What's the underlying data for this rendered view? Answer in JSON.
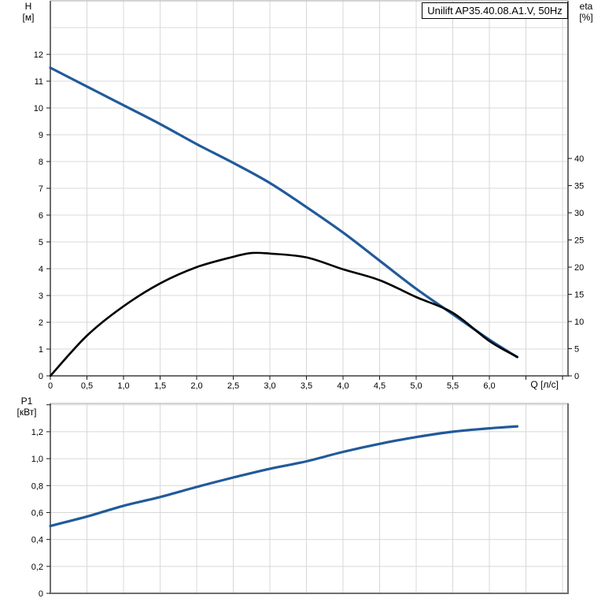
{
  "title_box": {
    "label": "Unilift AP35.40.08.A1.V, 50Hz"
  },
  "colors": {
    "curve_blue": "#215a9a",
    "curve_black": "#000000",
    "grid": "#d8d8d8",
    "frame": "#6e6e6e",
    "frame_light": "#aaaaaa",
    "tick": "#1a1a1a",
    "text": "#000000",
    "box_border": "#000000"
  },
  "chart_data": [
    {
      "type": "line",
      "title": "Unilift AP35.40.08.A1.V, 50Hz",
      "xlabel": "Q [л/с]",
      "ylabel_left_line1": "H",
      "ylabel_left_line2": "[м]",
      "ylabel_right_line1": "eta",
      "ylabel_right_line2": "[%]",
      "xlim": [
        0,
        7.075
      ],
      "ylim_left": [
        0,
        14
      ],
      "ylim_right": [
        0,
        69
      ],
      "grid_on": true,
      "grid_x": [
        0.5,
        1,
        1.5,
        2,
        2.5,
        3,
        3.5,
        4,
        4.5,
        5,
        5.5,
        6,
        6.5,
        7
      ],
      "grid_y": [
        1,
        2,
        3,
        4,
        5,
        6,
        7,
        8,
        9,
        10,
        11,
        12,
        13
      ],
      "x_ticks": [
        {
          "v": 0,
          "l": "0"
        },
        {
          "v": 0.5,
          "l": "0,5"
        },
        {
          "v": 1,
          "l": "1,0"
        },
        {
          "v": 1.5,
          "l": "1,5"
        },
        {
          "v": 2,
          "l": "2,0"
        },
        {
          "v": 2.5,
          "l": "2,5"
        },
        {
          "v": 3,
          "l": "3,0"
        },
        {
          "v": 3.5,
          "l": "3,5"
        },
        {
          "v": 4,
          "l": "4,0"
        },
        {
          "v": 4.5,
          "l": "4,5"
        },
        {
          "v": 5,
          "l": "5,0"
        },
        {
          "v": 5.5,
          "l": "5,5"
        },
        {
          "v": 6,
          "l": "6,0"
        },
        {
          "v": 6.5,
          "l": ""
        },
        {
          "v": 7,
          "l": ""
        }
      ],
      "y_ticks_left": [
        {
          "v": 0,
          "l": "0"
        },
        {
          "v": 1,
          "l": "1"
        },
        {
          "v": 2,
          "l": "2"
        },
        {
          "v": 3,
          "l": "3"
        },
        {
          "v": 4,
          "l": "4"
        },
        {
          "v": 5,
          "l": "5"
        },
        {
          "v": 6,
          "l": "6"
        },
        {
          "v": 7,
          "l": "7"
        },
        {
          "v": 8,
          "l": "8"
        },
        {
          "v": 9,
          "l": "9"
        },
        {
          "v": 10,
          "l": "10"
        },
        {
          "v": 11,
          "l": "11"
        },
        {
          "v": 12,
          "l": "12"
        }
      ],
      "y_ticks_right": [
        {
          "v": 0,
          "l": "0"
        },
        {
          "v": 5,
          "l": "5"
        },
        {
          "v": 10,
          "l": "10"
        },
        {
          "v": 15,
          "l": "15"
        },
        {
          "v": 20,
          "l": "20"
        },
        {
          "v": 25,
          "l": "25"
        },
        {
          "v": 30,
          "l": "30"
        },
        {
          "v": 35,
          "l": "35"
        },
        {
          "v": 40,
          "l": "40"
        }
      ],
      "series": [
        {
          "name": "h-curve",
          "axis": "left",
          "color": "#215a9a",
          "width": 3.2,
          "x": [
            0,
            0.5,
            1,
            1.5,
            2,
            2.5,
            3,
            3.5,
            4,
            4.5,
            5,
            5.5,
            6,
            6.38
          ],
          "y": [
            11.5,
            10.8,
            10.1,
            9.4,
            8.65,
            7.95,
            7.2,
            6.3,
            5.35,
            4.3,
            3.25,
            2.3,
            1.35,
            0.7
          ]
        },
        {
          "name": "eta-curve",
          "axis": "right",
          "color": "#000000",
          "width": 2.6,
          "x": [
            0,
            0.5,
            1,
            1.5,
            2,
            2.5,
            2.75,
            3,
            3.5,
            4,
            4.5,
            5,
            5.5,
            6,
            6.38
          ],
          "y": [
            0,
            7.4,
            12.8,
            17.0,
            20.0,
            21.9,
            22.6,
            22.5,
            21.8,
            19.6,
            17.6,
            14.5,
            11.6,
            6.4,
            3.5
          ]
        }
      ]
    },
    {
      "type": "line",
      "xlabel": "",
      "ylabel_left_line1": "P1",
      "ylabel_left_line2": "[кВт]",
      "xlim": [
        0,
        7.075
      ],
      "ylim_left": [
        0,
        1.41
      ],
      "grid_on": true,
      "grid_x": [
        0.5,
        1,
        1.5,
        2,
        2.5,
        3,
        3.5,
        4,
        4.5,
        5,
        5.5,
        6,
        6.5,
        7
      ],
      "grid_y": [
        0.2,
        0.4,
        0.6,
        0.8,
        1.0,
        1.2,
        1.4
      ],
      "x_ticks": [],
      "y_ticks_left": [
        {
          "v": 0,
          "l": "0"
        },
        {
          "v": 0.2,
          "l": "0,2"
        },
        {
          "v": 0.4,
          "l": "0,4"
        },
        {
          "v": 0.6,
          "l": "0,6"
        },
        {
          "v": 0.8,
          "l": "0,8"
        },
        {
          "v": 1.0,
          "l": "1,0"
        },
        {
          "v": 1.2,
          "l": "1,2"
        },
        {
          "v": 1.4,
          "l": ""
        }
      ],
      "y_ticks_right": [],
      "series": [
        {
          "name": "p1-curve",
          "axis": "left",
          "color": "#215a9a",
          "width": 3.2,
          "x": [
            0,
            0.5,
            1,
            1.5,
            2,
            2.5,
            3,
            3.5,
            4,
            4.5,
            5,
            5.5,
            6,
            6.38
          ],
          "y": [
            0.5,
            0.57,
            0.65,
            0.715,
            0.79,
            0.86,
            0.925,
            0.98,
            1.05,
            1.11,
            1.16,
            1.2,
            1.225,
            1.24
          ]
        }
      ]
    }
  ]
}
